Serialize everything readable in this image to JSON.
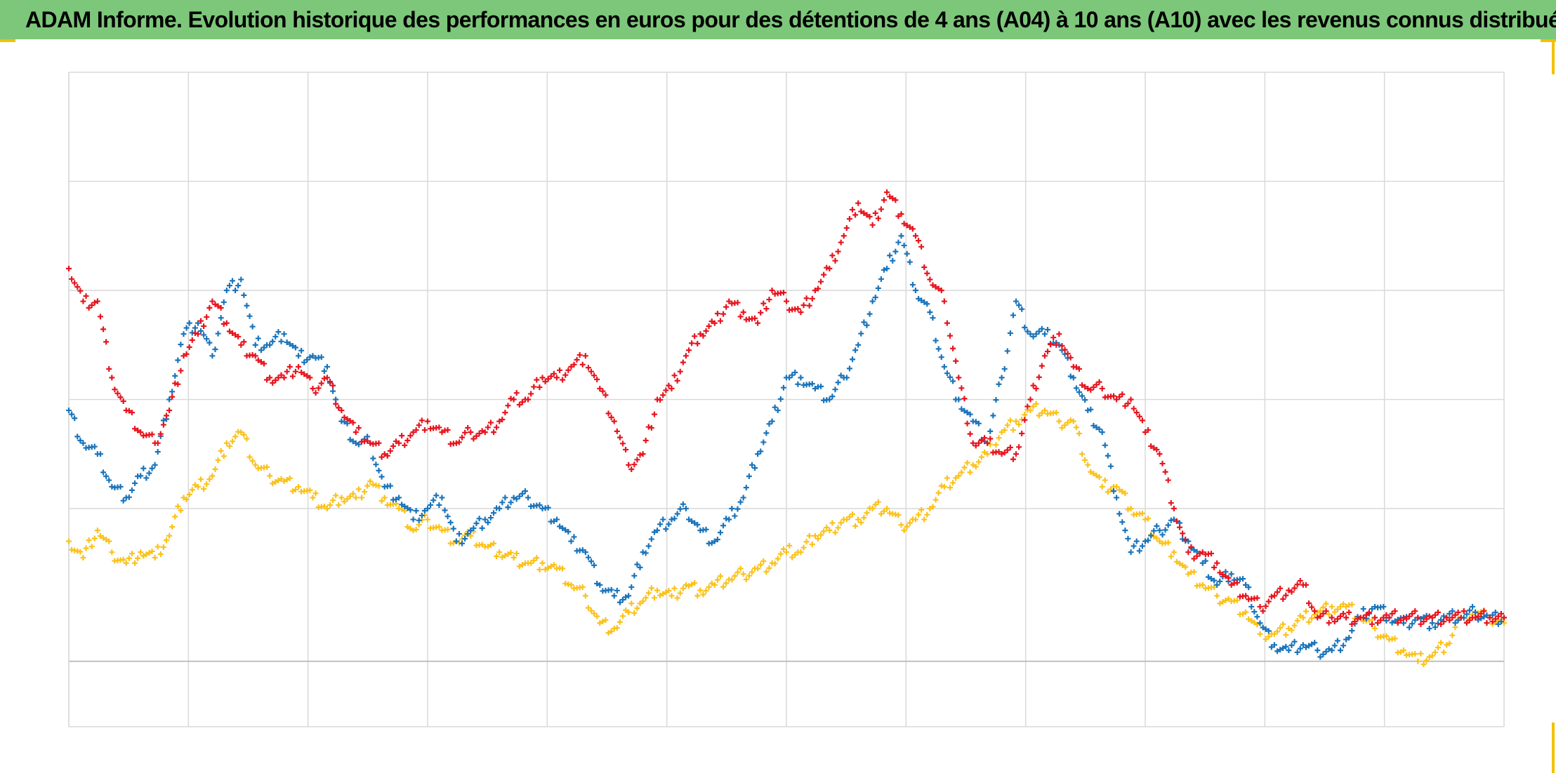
{
  "banner": {
    "title": "ADAM Informe. Evolution historique des performances en euros pour des détentions de 4 ans (A04) à 10 ans (A10) avec les revenus connus distribués"
  },
  "colors": {
    "banner_bg": "#7dc77a",
    "frame_accent": "#f2c200",
    "red_series": "#e8141e",
    "blue_series": "#1a74bb",
    "yellow_series": "#fbc21a",
    "grid": "#d9d9d9",
    "baseline": "#bfbfbf"
  },
  "chart_data": {
    "type": "scatter",
    "marker": "plus",
    "title": "",
    "xlabel": "",
    "ylabel": "",
    "tick_labels_shown": false,
    "grid": true,
    "x_range": [
      0,
      100
    ],
    "y_range": [
      -0.6,
      5.4
    ],
    "baseline_y": 0,
    "vertical_gridlines": 12,
    "horizontal_gridlines": [
      0,
      1.4,
      2.4,
      3.4,
      4.4,
      5.4
    ],
    "series": [
      {
        "color_key": "red_series",
        "points": [
          [
            0,
            3.6
          ],
          [
            1,
            3.3
          ],
          [
            2,
            3.3
          ],
          [
            3,
            2.6
          ],
          [
            4,
            2.3
          ],
          [
            5,
            2.1
          ],
          [
            6,
            2.0
          ],
          [
            7,
            2.3
          ],
          [
            8,
            2.8
          ],
          [
            9,
            3.0
          ],
          [
            10,
            3.3
          ],
          [
            11,
            3.1
          ],
          [
            12,
            2.9
          ],
          [
            13,
            2.8
          ],
          [
            14,
            2.6
          ],
          [
            15,
            2.6
          ],
          [
            16,
            2.7
          ],
          [
            17,
            2.5
          ],
          [
            18,
            2.6
          ],
          [
            19,
            2.3
          ],
          [
            20,
            2.1
          ],
          [
            21,
            2.0
          ],
          [
            22,
            1.9
          ],
          [
            23,
            2.0
          ],
          [
            24,
            2.1
          ],
          [
            25,
            2.2
          ],
          [
            26,
            2.1
          ],
          [
            27,
            2.0
          ],
          [
            28,
            2.1
          ],
          [
            29,
            2.1
          ],
          [
            30,
            2.2
          ],
          [
            31,
            2.4
          ],
          [
            32,
            2.4
          ],
          [
            33,
            2.6
          ],
          [
            34,
            2.6
          ],
          [
            35,
            2.7
          ],
          [
            36,
            2.8
          ],
          [
            37,
            2.5
          ],
          [
            38,
            2.2
          ],
          [
            39,
            1.8
          ],
          [
            40,
            1.9
          ],
          [
            41,
            2.4
          ],
          [
            42,
            2.5
          ],
          [
            43,
            2.8
          ],
          [
            44,
            3.0
          ],
          [
            45,
            3.1
          ],
          [
            46,
            3.3
          ],
          [
            47,
            3.2
          ],
          [
            48,
            3.1
          ],
          [
            49,
            3.4
          ],
          [
            50,
            3.3
          ],
          [
            51,
            3.2
          ],
          [
            52,
            3.4
          ],
          [
            53,
            3.6
          ],
          [
            54,
            3.9
          ],
          [
            55,
            4.2
          ],
          [
            56,
            4.0
          ],
          [
            57,
            4.3
          ],
          [
            58,
            4.1
          ],
          [
            59,
            3.9
          ],
          [
            60,
            3.5
          ],
          [
            61,
            3.3
          ],
          [
            62,
            2.6
          ],
          [
            63,
            2.0
          ],
          [
            64,
            2.0
          ],
          [
            65,
            1.9
          ],
          [
            66,
            1.9
          ],
          [
            67,
            2.4
          ],
          [
            68,
            2.8
          ],
          [
            69,
            3.0
          ],
          [
            70,
            2.7
          ],
          [
            71,
            2.5
          ],
          [
            72,
            2.5
          ],
          [
            73,
            2.4
          ],
          [
            74,
            2.4
          ],
          [
            75,
            2.1
          ],
          [
            76,
            1.9
          ],
          [
            77,
            1.4
          ],
          [
            78,
            1.0
          ],
          [
            79,
            1.0
          ],
          [
            80,
            0.9
          ],
          [
            81,
            0.7
          ],
          [
            82,
            0.6
          ],
          [
            83,
            0.5
          ],
          [
            84,
            0.6
          ],
          [
            85,
            0.65
          ],
          [
            86,
            0.7
          ],
          [
            87,
            0.4
          ],
          [
            88,
            0.4
          ],
          [
            89,
            0.4
          ],
          [
            90,
            0.4
          ],
          [
            91,
            0.4
          ],
          [
            92,
            0.4
          ],
          [
            93,
            0.4
          ],
          [
            94,
            0.4
          ],
          [
            95,
            0.4
          ],
          [
            96,
            0.4
          ],
          [
            97,
            0.4
          ],
          [
            98,
            0.4
          ],
          [
            99,
            0.4
          ],
          [
            100,
            0.4
          ]
        ]
      },
      {
        "color_key": "blue_series",
        "points": [
          [
            0,
            2.3
          ],
          [
            1,
            2.0
          ],
          [
            2,
            1.9
          ],
          [
            3,
            1.6
          ],
          [
            4,
            1.5
          ],
          [
            5,
            1.7
          ],
          [
            6,
            1.8
          ],
          [
            7,
            2.4
          ],
          [
            8,
            3.0
          ],
          [
            9,
            3.1
          ],
          [
            10,
            2.8
          ],
          [
            11,
            3.4
          ],
          [
            12,
            3.5
          ],
          [
            13,
            2.9
          ],
          [
            14,
            2.9
          ],
          [
            15,
            3.0
          ],
          [
            16,
            2.8
          ],
          [
            17,
            2.8
          ],
          [
            18,
            2.7
          ],
          [
            19,
            2.2
          ],
          [
            20,
            2.0
          ],
          [
            21,
            2.0
          ],
          [
            22,
            1.6
          ],
          [
            23,
            1.5
          ],
          [
            24,
            1.3
          ],
          [
            25,
            1.4
          ],
          [
            26,
            1.5
          ],
          [
            27,
            1.1
          ],
          [
            28,
            1.2
          ],
          [
            29,
            1.3
          ],
          [
            30,
            1.4
          ],
          [
            31,
            1.5
          ],
          [
            32,
            1.5
          ],
          [
            33,
            1.4
          ],
          [
            34,
            1.3
          ],
          [
            35,
            1.1
          ],
          [
            36,
            1.0
          ],
          [
            37,
            0.7
          ],
          [
            38,
            0.6
          ],
          [
            39,
            0.6
          ],
          [
            40,
            1.0
          ],
          [
            41,
            1.2
          ],
          [
            42,
            1.3
          ],
          [
            43,
            1.4
          ],
          [
            44,
            1.2
          ],
          [
            45,
            1.1
          ],
          [
            46,
            1.3
          ],
          [
            47,
            1.5
          ],
          [
            48,
            1.9
          ],
          [
            49,
            2.2
          ],
          [
            50,
            2.6
          ],
          [
            51,
            2.6
          ],
          [
            52,
            2.5
          ],
          [
            53,
            2.4
          ],
          [
            54,
            2.6
          ],
          [
            55,
            2.9
          ],
          [
            56,
            3.3
          ],
          [
            57,
            3.6
          ],
          [
            58,
            3.9
          ],
          [
            59,
            3.4
          ],
          [
            60,
            3.2
          ],
          [
            61,
            2.7
          ],
          [
            62,
            2.4
          ],
          [
            63,
            2.2
          ],
          [
            64,
            2.0
          ],
          [
            65,
            2.6
          ],
          [
            66,
            3.3
          ],
          [
            67,
            3.0
          ],
          [
            68,
            3.0
          ],
          [
            69,
            2.9
          ],
          [
            70,
            2.6
          ],
          [
            71,
            2.3
          ],
          [
            72,
            2.1
          ],
          [
            73,
            1.5
          ],
          [
            74,
            1.0
          ],
          [
            75,
            1.1
          ],
          [
            76,
            1.2
          ],
          [
            77,
            1.3
          ],
          [
            78,
            1.1
          ],
          [
            79,
            0.9
          ],
          [
            80,
            0.7
          ],
          [
            81,
            0.8
          ],
          [
            82,
            0.7
          ],
          [
            83,
            0.35
          ],
          [
            84,
            0.15
          ],
          [
            85,
            0.1
          ],
          [
            86,
            0.15
          ],
          [
            87,
            0.1
          ],
          [
            88,
            0.1
          ],
          [
            89,
            0.2
          ],
          [
            90,
            0.4
          ],
          [
            91,
            0.5
          ],
          [
            92,
            0.4
          ],
          [
            93,
            0.35
          ],
          [
            94,
            0.4
          ],
          [
            95,
            0.35
          ],
          [
            96,
            0.4
          ],
          [
            97,
            0.4
          ],
          [
            98,
            0.45
          ],
          [
            99,
            0.4
          ],
          [
            100,
            0.4
          ]
        ]
      },
      {
        "color_key": "yellow_series",
        "points": [
          [
            0,
            1.1
          ],
          [
            1,
            0.95
          ],
          [
            2,
            1.2
          ],
          [
            3,
            1.0
          ],
          [
            4,
            0.9
          ],
          [
            5,
            1.0
          ],
          [
            6,
            0.95
          ],
          [
            7,
            1.15
          ],
          [
            8,
            1.5
          ],
          [
            9,
            1.6
          ],
          [
            10,
            1.7
          ],
          [
            11,
            2.0
          ],
          [
            12,
            2.1
          ],
          [
            13,
            1.8
          ],
          [
            14,
            1.7
          ],
          [
            15,
            1.65
          ],
          [
            16,
            1.6
          ],
          [
            17,
            1.5
          ],
          [
            18,
            1.4
          ],
          [
            19,
            1.5
          ],
          [
            20,
            1.5
          ],
          [
            21,
            1.65
          ],
          [
            22,
            1.5
          ],
          [
            23,
            1.4
          ],
          [
            24,
            1.2
          ],
          [
            25,
            1.3
          ],
          [
            26,
            1.2
          ],
          [
            27,
            1.1
          ],
          [
            28,
            1.15
          ],
          [
            29,
            1.05
          ],
          [
            30,
            1.0
          ],
          [
            31,
            0.95
          ],
          [
            32,
            0.9
          ],
          [
            33,
            0.9
          ],
          [
            34,
            0.85
          ],
          [
            35,
            0.7
          ],
          [
            36,
            0.6
          ],
          [
            37,
            0.35
          ],
          [
            38,
            0.3
          ],
          [
            39,
            0.45
          ],
          [
            40,
            0.55
          ],
          [
            41,
            0.65
          ],
          [
            42,
            0.6
          ],
          [
            43,
            0.7
          ],
          [
            44,
            0.65
          ],
          [
            45,
            0.7
          ],
          [
            46,
            0.75
          ],
          [
            47,
            0.8
          ],
          [
            48,
            0.85
          ],
          [
            49,
            0.9
          ],
          [
            50,
            1.0
          ],
          [
            51,
            1.0
          ],
          [
            52,
            1.15
          ],
          [
            53,
            1.2
          ],
          [
            54,
            1.3
          ],
          [
            55,
            1.3
          ],
          [
            56,
            1.4
          ],
          [
            57,
            1.4
          ],
          [
            58,
            1.25
          ],
          [
            59,
            1.3
          ],
          [
            60,
            1.4
          ],
          [
            61,
            1.6
          ],
          [
            62,
            1.7
          ],
          [
            63,
            1.8
          ],
          [
            64,
            1.9
          ],
          [
            65,
            2.1
          ],
          [
            66,
            2.2
          ],
          [
            67,
            2.3
          ],
          [
            68,
            2.3
          ],
          [
            69,
            2.2
          ],
          [
            70,
            2.2
          ],
          [
            71,
            1.8
          ],
          [
            72,
            1.6
          ],
          [
            73,
            1.6
          ],
          [
            74,
            1.4
          ],
          [
            75,
            1.3
          ],
          [
            76,
            1.1
          ],
          [
            77,
            1.0
          ],
          [
            78,
            0.8
          ],
          [
            79,
            0.7
          ],
          [
            80,
            0.6
          ],
          [
            81,
            0.55
          ],
          [
            82,
            0.45
          ],
          [
            83,
            0.25
          ],
          [
            84,
            0.25
          ],
          [
            85,
            0.3
          ],
          [
            86,
            0.4
          ],
          [
            87,
            0.45
          ],
          [
            88,
            0.5
          ],
          [
            89,
            0.5
          ],
          [
            90,
            0.4
          ],
          [
            91,
            0.3
          ],
          [
            92,
            0.2
          ],
          [
            93,
            0.1
          ],
          [
            94,
            0.0
          ],
          [
            95,
            0.05
          ],
          [
            96,
            0.15
          ],
          [
            97,
            0.4
          ],
          [
            98,
            0.45
          ],
          [
            99,
            0.4
          ],
          [
            100,
            0.35
          ]
        ]
      }
    ]
  }
}
